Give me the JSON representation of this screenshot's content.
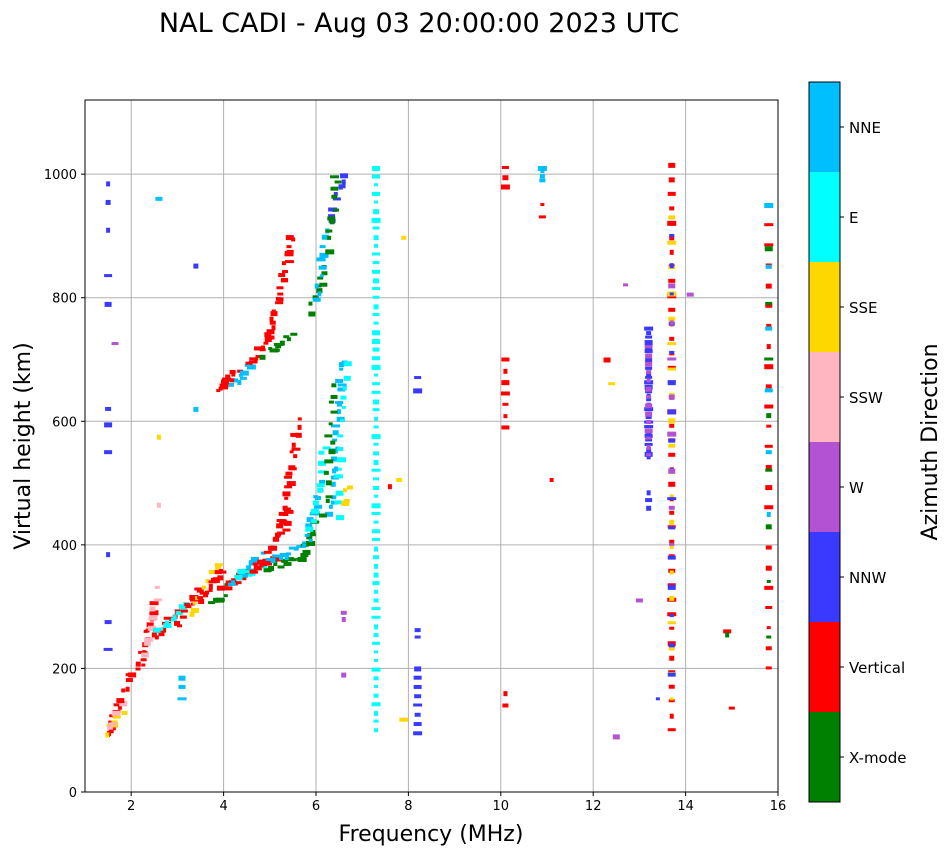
{
  "chart_data": {
    "type": "scatter",
    "title": "NAL CADI - Aug 03 20:00:00 2023 UTC",
    "xlabel": "Frequency (MHz)",
    "ylabel": "Virtual height (km)",
    "xlim": [
      1,
      16
    ],
    "ylim": [
      0,
      1120
    ],
    "xticks": [
      2,
      4,
      6,
      8,
      10,
      12,
      14,
      16
    ],
    "yticks": [
      0,
      200,
      400,
      600,
      800,
      1000
    ],
    "grid": true,
    "colorbar": {
      "label": "Azimuth Direction",
      "categories": [
        "X-mode",
        "Vertical",
        "NNW",
        "W",
        "SSW",
        "SSE",
        "E",
        "NNE"
      ],
      "colors": [
        "#008000",
        "#ff0000",
        "#3a3aff",
        "#b452d4",
        "#ffb6c1",
        "#ffd700",
        "#00ffff",
        "#00bfff"
      ]
    },
    "echo_runs_note": "each run: [f_start, h_start, f_end, h_end, count, category_index]",
    "echo_runs": [
      [
        1.5,
        90,
        1.75,
        140,
        10,
        1
      ],
      [
        1.5,
        95,
        1.8,
        130,
        6,
        5
      ],
      [
        1.55,
        100,
        1.85,
        150,
        5,
        4
      ],
      [
        1.8,
        150,
        2.3,
        230,
        10,
        1
      ],
      [
        2.2,
        200,
        2.5,
        300,
        12,
        1
      ],
      [
        2.3,
        220,
        2.6,
        330,
        8,
        4
      ],
      [
        2.5,
        250,
        3.0,
        290,
        14,
        1
      ],
      [
        2.6,
        260,
        3.2,
        300,
        10,
        6
      ],
      [
        3.0,
        270,
        3.5,
        330,
        12,
        1
      ],
      [
        3.3,
        290,
        3.9,
        370,
        10,
        5
      ],
      [
        3.5,
        310,
        4.0,
        360,
        14,
        1
      ],
      [
        3.8,
        300,
        4.2,
        340,
        8,
        0
      ],
      [
        4.0,
        330,
        4.6,
        360,
        16,
        1
      ],
      [
        4.2,
        340,
        4.8,
        380,
        12,
        7
      ],
      [
        4.3,
        350,
        5.0,
        370,
        12,
        6
      ],
      [
        4.6,
        360,
        5.2,
        380,
        14,
        1
      ],
      [
        4.9,
        360,
        5.6,
        380,
        12,
        0
      ],
      [
        5.0,
        370,
        5.8,
        400,
        12,
        7
      ],
      [
        5.0,
        390,
        5.4,
        460,
        14,
        1
      ],
      [
        5.3,
        420,
        5.6,
        600,
        22,
        1
      ],
      [
        5.7,
        380,
        6.0,
        440,
        10,
        0
      ],
      [
        5.8,
        400,
        6.1,
        500,
        12,
        7
      ],
      [
        5.9,
        430,
        6.2,
        560,
        10,
        6
      ],
      [
        3.9,
        650,
        4.3,
        680,
        14,
        1
      ],
      [
        4.2,
        660,
        4.6,
        690,
        8,
        7
      ],
      [
        4.6,
        690,
        5.0,
        740,
        12,
        1
      ],
      [
        4.9,
        710,
        5.5,
        740,
        10,
        0
      ],
      [
        5.0,
        740,
        5.5,
        900,
        24,
        1
      ],
      [
        5.9,
        780,
        6.2,
        850,
        10,
        0
      ],
      [
        6.0,
        800,
        6.2,
        910,
        10,
        7
      ],
      [
        6.3,
        920,
        6.6,
        1000,
        10,
        2
      ],
      [
        6.3,
        880,
        6.45,
        1000,
        10,
        0
      ],
      [
        6.3,
        450,
        6.6,
        700,
        24,
        7
      ],
      [
        6.2,
        450,
        6.4,
        660,
        14,
        0
      ],
      [
        6.5,
        450,
        6.65,
        690,
        14,
        6
      ],
      [
        6.6,
        470,
        6.7,
        490,
        4,
        5
      ],
      [
        7.3,
        100,
        7.3,
        1010,
        66,
        6
      ],
      [
        8.2,
        95,
        8.2,
        200,
        8,
        2
      ],
      [
        8.2,
        250,
        8.2,
        262,
        2,
        2
      ],
      [
        8.2,
        650,
        8.2,
        670,
        2,
        2
      ],
      [
        10.1,
        140,
        10.1,
        160,
        2,
        1
      ],
      [
        10.1,
        590,
        10.1,
        700,
        7,
        1
      ],
      [
        10.1,
        980,
        10.1,
        1010,
        3,
        1
      ],
      [
        10.9,
        930,
        10.9,
        950,
        2,
        1
      ],
      [
        10.9,
        990,
        10.9,
        1010,
        4,
        7
      ],
      [
        13.2,
        540,
        13.2,
        750,
        30,
        2
      ],
      [
        13.2,
        545,
        13.2,
        720,
        14,
        3
      ],
      [
        13.2,
        460,
        13.2,
        485,
        3,
        2
      ],
      [
        13.7,
        100,
        13.7,
        1015,
        40,
        1
      ],
      [
        13.7,
        150,
        13.7,
        930,
        20,
        5
      ],
      [
        13.7,
        190,
        13.7,
        900,
        16,
        2
      ],
      [
        13.7,
        400,
        13.7,
        820,
        8,
        3
      ],
      [
        15.8,
        200,
        15.8,
        950,
        24,
        1
      ],
      [
        15.8,
        250,
        15.8,
        880,
        8,
        0
      ],
      [
        15.8,
        450,
        15.8,
        950,
        6,
        7
      ]
    ],
    "extra_echoes": [
      [
        6.6,
        190,
        3
      ],
      [
        6.6,
        280,
        3
      ],
      [
        6.6,
        290,
        3
      ],
      [
        3.1,
        150,
        7
      ],
      [
        3.1,
        170,
        7
      ],
      [
        3.1,
        185,
        7
      ],
      [
        12.5,
        90,
        3
      ],
      [
        12.7,
        820,
        3
      ],
      [
        12.3,
        700,
        1
      ],
      [
        12.4,
        660,
        5
      ],
      [
        13.0,
        310,
        3
      ],
      [
        13.4,
        150,
        2
      ],
      [
        14.1,
        805,
        3
      ],
      [
        14.9,
        260,
        1
      ],
      [
        14.9,
        255,
        0
      ],
      [
        15.0,
        135,
        1
      ],
      [
        11.1,
        505,
        1
      ],
      [
        7.9,
        897,
        5
      ],
      [
        7.9,
        117,
        5
      ],
      [
        1.5,
        230,
        2
      ],
      [
        1.5,
        275,
        2
      ],
      [
        1.5,
        385,
        2
      ],
      [
        1.5,
        550,
        2
      ],
      [
        1.5,
        595,
        2
      ],
      [
        1.5,
        620,
        2
      ],
      [
        1.5,
        790,
        2
      ],
      [
        1.5,
        835,
        2
      ],
      [
        1.5,
        910,
        2
      ],
      [
        1.5,
        955,
        2
      ],
      [
        1.5,
        985,
        2
      ],
      [
        1.65,
        725,
        3
      ],
      [
        2.6,
        960,
        7
      ],
      [
        2.6,
        575,
        5
      ],
      [
        2.6,
        465,
        4
      ],
      [
        3.4,
        620,
        7
      ],
      [
        3.4,
        852,
        2
      ],
      [
        7.6,
        495,
        1
      ],
      [
        7.8,
        505,
        5
      ]
    ]
  }
}
